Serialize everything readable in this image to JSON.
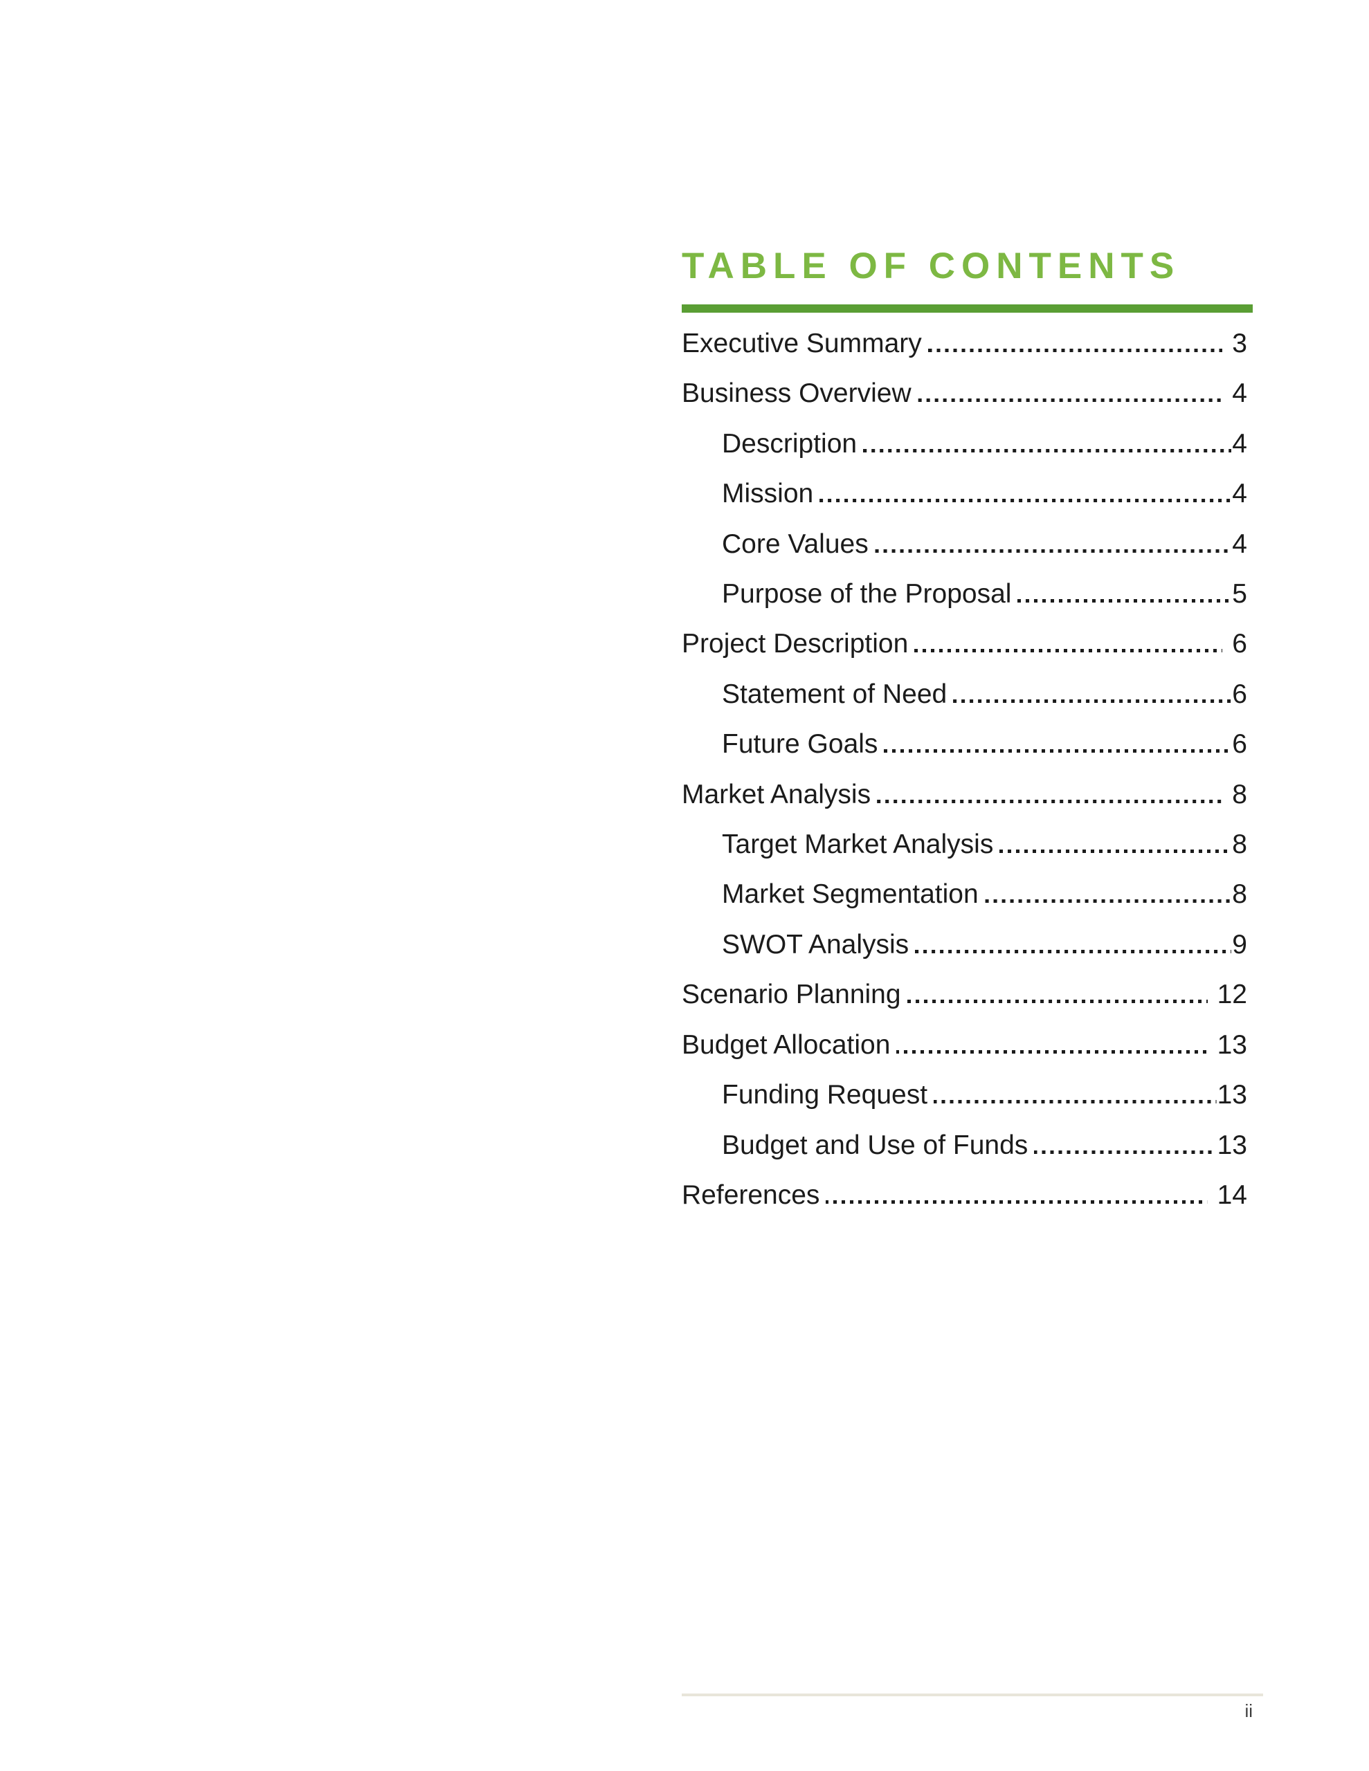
{
  "colors": {
    "page_background": "#ffffff",
    "title_green": "#7db843",
    "rule_green": "#5a9e34",
    "body_text": "#1b1b1b",
    "footer_line": "#e8e5da",
    "footer_text": "#3d3d3d"
  },
  "toc": {
    "title": "TABLE OF CONTENTS",
    "entries": [
      {
        "label": "Executive Summary",
        "page": "3",
        "level": 1
      },
      {
        "label": "Business Overview",
        "page": "4",
        "level": 1
      },
      {
        "label": "Description",
        "page": "4",
        "level": 2
      },
      {
        "label": "Mission",
        "page": "4",
        "level": 2
      },
      {
        "label": "Core Values",
        "page": "4",
        "level": 2
      },
      {
        "label": "Purpose of the Proposal",
        "page": "5",
        "level": 2
      },
      {
        "label": "Project Description",
        "page": "6",
        "level": 1
      },
      {
        "label": "Statement of Need",
        "page": "6",
        "level": 2
      },
      {
        "label": "Future Goals",
        "page": "6",
        "level": 2
      },
      {
        "label": "Market Analysis",
        "page": "8",
        "level": 1
      },
      {
        "label": "Target Market Analysis",
        "page": "8",
        "level": 2
      },
      {
        "label": "Market Segmentation",
        "page": "8",
        "level": 2
      },
      {
        "label": "SWOT Analysis",
        "page": "9",
        "level": 2
      },
      {
        "label": "Scenario Planning",
        "page": "12",
        "level": 1
      },
      {
        "label": "Budget Allocation",
        "page": "13",
        "level": 1
      },
      {
        "label": "Funding Request",
        "page": "13",
        "level": 2
      },
      {
        "label": "Budget and Use of Funds",
        "page": "13",
        "level": 2
      },
      {
        "label": "References",
        "page": "14",
        "level": 1
      }
    ]
  },
  "footer": {
    "page_number": "ii"
  }
}
